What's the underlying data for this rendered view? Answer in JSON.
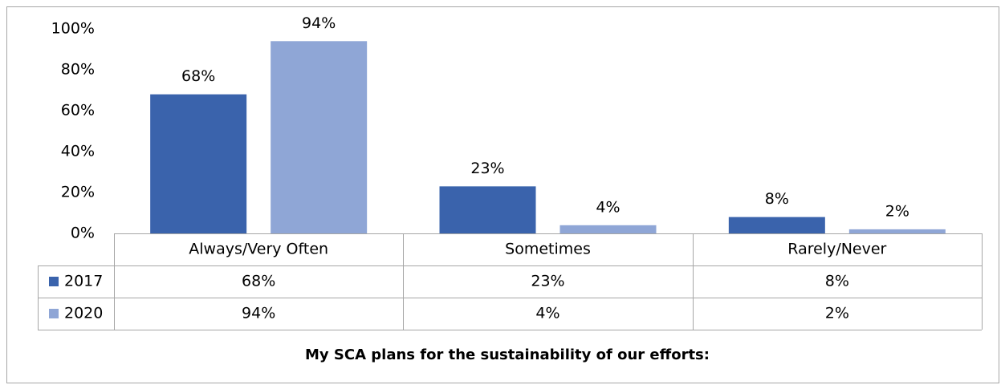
{
  "chart_data": {
    "type": "bar",
    "title": "My SCA plans for the sustainability of our efforts:",
    "categories": [
      "Always/Very Often",
      "Sometimes",
      "Rarely/Never"
    ],
    "series": [
      {
        "name": "2017",
        "color": "#3a63ac",
        "values": [
          68,
          23,
          8
        ],
        "value_labels": [
          "68%",
          "23%",
          "8%"
        ]
      },
      {
        "name": "2020",
        "color": "#8fa6d6",
        "values": [
          94,
          4,
          2
        ],
        "value_labels": [
          "94%",
          "4%",
          "2%"
        ]
      }
    ],
    "ylim": [
      0,
      100
    ],
    "yticks": [
      {
        "value": 0,
        "label": "0%"
      },
      {
        "value": 20,
        "label": "20%"
      },
      {
        "value": 40,
        "label": "40%"
      },
      {
        "value": 60,
        "label": "60%"
      },
      {
        "value": 80,
        "label": "80%"
      },
      {
        "value": 100,
        "label": "100%"
      }
    ],
    "grid": false,
    "legend": "data-table"
  }
}
